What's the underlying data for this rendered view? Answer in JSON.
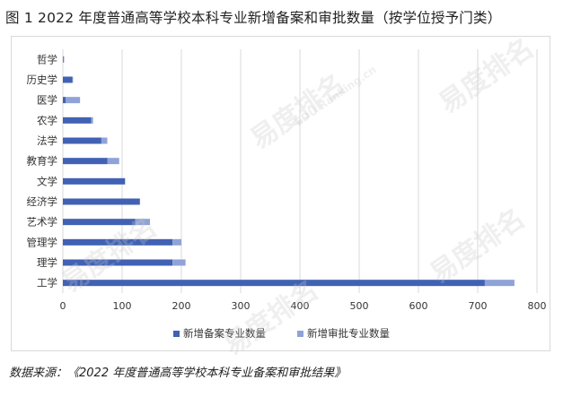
{
  "title": "图 1  2022 年度普通高等学校本科专业新增备案和审批数量（按学位授予门类）",
  "source": "数据来源：《2022 年度普通高等学校本科专业备案和审批结果》",
  "watermark": {
    "brand": "易度排名",
    "site": "EDU Ranking.cn"
  },
  "colors": {
    "series1": "#4162b4",
    "series2": "#8fa3d8",
    "grid": "#d9d9d9",
    "text": "#333333"
  },
  "chart_data": {
    "type": "bar",
    "orientation": "horizontal",
    "stacked": true,
    "categories": [
      "哲学",
      "历史学",
      "医学",
      "农学",
      "法学",
      "教育学",
      "文学",
      "经济学",
      "艺术学",
      "管理学",
      "理学",
      "工学"
    ],
    "series": [
      {
        "name": "新增备案专业数量",
        "values": [
          1,
          16,
          5,
          48,
          65,
          75,
          105,
          130,
          122,
          185,
          185,
          712
        ]
      },
      {
        "name": "新增审批专业数量",
        "values": [
          1,
          1,
          24,
          3,
          10,
          20,
          0,
          0,
          25,
          15,
          22,
          50
        ]
      }
    ],
    "xlim": [
      0,
      800
    ],
    "xticks": [
      0,
      100,
      200,
      300,
      400,
      500,
      600,
      700,
      800
    ],
    "grid": "vertical",
    "legend": "bottom"
  }
}
